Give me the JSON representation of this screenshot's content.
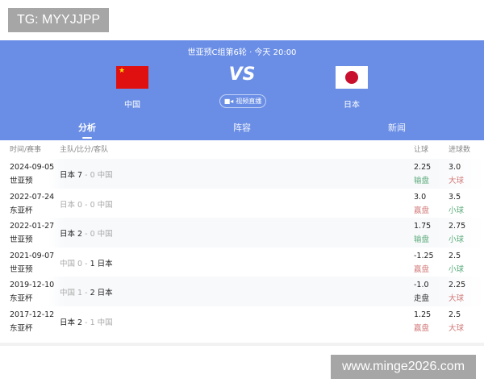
{
  "watermarks": {
    "top": "TG: MYYJJPP",
    "bottom": "www.minge2026.com"
  },
  "header": {
    "title": "世亚预C组第6轮 · 今天 20:00",
    "home": "中国",
    "away": "日本",
    "vs": "VS",
    "live_label": "视频直播",
    "tabs": [
      {
        "label": "分析",
        "active": true
      },
      {
        "label": "阵容"
      },
      {
        "label": "新闻"
      }
    ]
  },
  "columns": {
    "time": "时间/赛事",
    "teams": "主队/比分/客队",
    "handicap": "让球",
    "goals": "进球数"
  },
  "colors": {
    "header_bg": "#6a8ee6",
    "win_result": "#d37a7a",
    "lose_result": "#5aab7a"
  },
  "matches": [
    {
      "date": "2024-09-05",
      "comp": "世亚预",
      "home": "日本",
      "hs": "7",
      "as": "0",
      "away": "中国",
      "hwin": "w",
      "awin": "l",
      "hc": "2.25",
      "hc_res": "输盘",
      "hc_col": "green",
      "ou": "3.0",
      "ou_res": "大球",
      "ou_col": "red"
    },
    {
      "date": "2022-07-24",
      "comp": "东亚杯",
      "home": "日本",
      "hs": "0",
      "as": "0",
      "away": "中国",
      "hwin": "l",
      "awin": "l",
      "hc": "3.0",
      "hc_res": "赢盘",
      "hc_col": "red",
      "ou": "3.5",
      "ou_res": "小球",
      "ou_col": "green"
    },
    {
      "date": "2022-01-27",
      "comp": "世亚预",
      "home": "日本",
      "hs": "2",
      "as": "0",
      "away": "中国",
      "hwin": "w",
      "awin": "l",
      "hc": "1.75",
      "hc_res": "输盘",
      "hc_col": "green",
      "ou": "2.75",
      "ou_res": "小球",
      "ou_col": "green"
    },
    {
      "date": "2021-09-07",
      "comp": "世亚预",
      "home": "中国",
      "hs": "0",
      "as": "1",
      "away": "日本",
      "hwin": "l",
      "awin": "w",
      "hc": "-1.25",
      "hc_res": "赢盘",
      "hc_col": "red",
      "ou": "2.5",
      "ou_res": "小球",
      "ou_col": "green"
    },
    {
      "date": "2019-12-10",
      "comp": "东亚杯",
      "home": "中国",
      "hs": "1",
      "as": "2",
      "away": "日本",
      "hwin": "l",
      "awin": "w",
      "hc": "-1.0",
      "hc_res": "走盘",
      "hc_col": "dark",
      "ou": "2.25",
      "ou_res": "大球",
      "ou_col": "red"
    },
    {
      "date": "2017-12-12",
      "comp": "东亚杯",
      "home": "日本",
      "hs": "2",
      "as": "1",
      "away": "中国",
      "hwin": "w",
      "awin": "l",
      "hc": "1.25",
      "hc_res": "赢盘",
      "hc_col": "red",
      "ou": "2.5",
      "ou_res": "大球",
      "ou_col": "red"
    }
  ]
}
